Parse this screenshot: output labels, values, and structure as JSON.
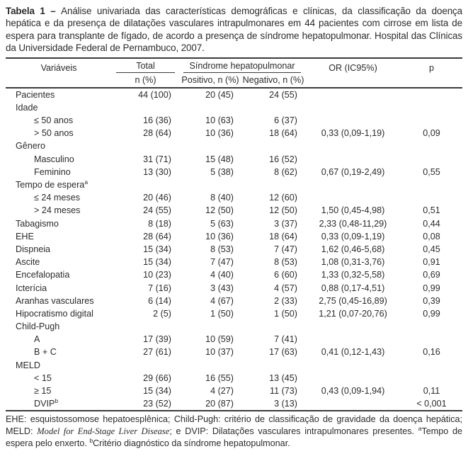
{
  "colors": {
    "ink": "#2b2b2b",
    "rule": "#3b3b3b"
  },
  "title": {
    "label": "Tabela 1 – ",
    "text": "Análise univariada das características demográficas e clínicas, da classificação da doença hepática e da presença de dilatações vasculares intrapulmonares em 44 pacientes com cirrose em lista de espera para transplante de fígado, de acordo a presença de síndrome hepatopulmonar. Hospital das Clínicas da Universidade Federal de Pernambuco, 2007."
  },
  "table": {
    "header": {
      "variaveis": "Variáveis",
      "total": "Total",
      "shp": "Síndrome hepatopulmonar",
      "or": "OR (IC95%)",
      "p": "p"
    },
    "subheader": {
      "total": "n (%)",
      "positivo": "Positivo, n (%)",
      "negativo": "Negativo, n (%)"
    },
    "rows": [
      {
        "label": "Pacientes",
        "indent": false,
        "sup": "",
        "total": "44 (100)",
        "positivo": "20 (45)",
        "negativo": "24 (55)",
        "or": "",
        "p": ""
      },
      {
        "label": "Idade",
        "indent": false,
        "sup": "",
        "total": "",
        "positivo": "",
        "negativo": "",
        "or": "",
        "p": ""
      },
      {
        "label": "≤ 50 anos",
        "indent": true,
        "sup": "",
        "total": "16 (36)",
        "positivo": "10 (63)",
        "negativo": "6 (37)",
        "or": "",
        "p": ""
      },
      {
        "label": "> 50 anos",
        "indent": true,
        "sup": "",
        "total": "28 (64)",
        "positivo": "10 (36)",
        "negativo": "18 (64)",
        "or": "0,33 (0,09-1,19)",
        "p": "0,09"
      },
      {
        "label": "Gênero",
        "indent": false,
        "sup": "",
        "total": "",
        "positivo": "",
        "negativo": "",
        "or": "",
        "p": ""
      },
      {
        "label": "Masculino",
        "indent": true,
        "sup": "",
        "total": "31 (71)",
        "positivo": "15 (48)",
        "negativo": "16 (52)",
        "or": "",
        "p": ""
      },
      {
        "label": "Feminino",
        "indent": true,
        "sup": "",
        "total": "13 (30)",
        "positivo": "5 (38)",
        "negativo": "8 (62)",
        "or": "0,67 (0,19-2,49)",
        "p": "0,55"
      },
      {
        "label": "Tempo de espera",
        "indent": false,
        "sup": "a",
        "total": "",
        "positivo": "",
        "negativo": "",
        "or": "",
        "p": ""
      },
      {
        "label": "≤ 24 meses",
        "indent": true,
        "sup": "",
        "total": "20 (46)",
        "positivo": "8 (40)",
        "negativo": "12 (60)",
        "or": "",
        "p": ""
      },
      {
        "label": "> 24 meses",
        "indent": true,
        "sup": "",
        "total": "24 (55)",
        "positivo": "12 (50)",
        "negativo": "12 (50)",
        "or": "1,50 (0,45-4,98)",
        "p": "0,51"
      },
      {
        "label": "Tabagismo",
        "indent": false,
        "sup": "",
        "total": "8 (18)",
        "positivo": "5 (63)",
        "negativo": "3 (37)",
        "or": "2,33 (0,48-11,29)",
        "p": "0,44"
      },
      {
        "label": "EHE",
        "indent": false,
        "sup": "",
        "total": "28 (64)",
        "positivo": "10 (36)",
        "negativo": "18 (64)",
        "or": "0,33 (0,09-1,19)",
        "p": "0,08"
      },
      {
        "label": "Dispneia",
        "indent": false,
        "sup": "",
        "total": "15 (34)",
        "positivo": "8 (53)",
        "negativo": "7 (47)",
        "or": "1,62 (0,46-5,68)",
        "p": "0,45"
      },
      {
        "label": "Ascite",
        "indent": false,
        "sup": "",
        "total": "15 (34)",
        "positivo": "7 (47)",
        "negativo": "8 (53)",
        "or": "1,08 (0,31-3,76)",
        "p": "0,91"
      },
      {
        "label": "Encefalopatia",
        "indent": false,
        "sup": "",
        "total": "10 (23)",
        "positivo": "4 (40)",
        "negativo": "6 (60)",
        "or": "1,33 (0,32-5,58)",
        "p": "0,69"
      },
      {
        "label": "Icterícia",
        "indent": false,
        "sup": "",
        "total": "7 (16)",
        "positivo": "3 (43)",
        "negativo": "4 (57)",
        "or": "0,88 (0,17-4,51)",
        "p": "0,99"
      },
      {
        "label": "Aranhas vasculares",
        "indent": false,
        "sup": "",
        "total": "6 (14)",
        "positivo": "4 (67)",
        "negativo": "2 (33)",
        "or": "2,75 (0,45-16,89)",
        "p": "0,39"
      },
      {
        "label": "Hipocratismo digital",
        "indent": false,
        "sup": "",
        "total": "2 (5)",
        "positivo": "1 (50)",
        "negativo": "1 (50)",
        "or": "1,21 (0,07-20,76)",
        "p": "0,99"
      },
      {
        "label": "Child-Pugh",
        "indent": false,
        "sup": "",
        "total": "",
        "positivo": "",
        "negativo": "",
        "or": "",
        "p": ""
      },
      {
        "label": "A",
        "indent": true,
        "sup": "",
        "total": "17 (39)",
        "positivo": "10 (59)",
        "negativo": "7 (41)",
        "or": "",
        "p": ""
      },
      {
        "label": "B + C",
        "indent": true,
        "sup": "",
        "total": "27 (61)",
        "positivo": "10 (37)",
        "negativo": "17 (63)",
        "or": "0,41 (0,12-1,43)",
        "p": "0,16"
      },
      {
        "label": "MELD",
        "indent": false,
        "sup": "",
        "total": "",
        "positivo": "",
        "negativo": "",
        "or": "",
        "p": ""
      },
      {
        "label": "< 15",
        "indent": true,
        "sup": "",
        "total": "29 (66)",
        "positivo": "16 (55)",
        "negativo": "13 (45)",
        "or": "",
        "p": ""
      },
      {
        "label": "≥ 15",
        "indent": true,
        "sup": "",
        "total": "15 (34)",
        "positivo": "4 (27)",
        "negativo": "11 (73)",
        "or": "0,43 (0,09-1,94)",
        "p": "0,11"
      },
      {
        "label": "DVIP",
        "indent": true,
        "sup": "b",
        "total": "23 (52)",
        "positivo": "20 (87)",
        "negativo": "3 (13)",
        "or": "",
        "p": "< 0,001"
      }
    ]
  },
  "footnote": {
    "part1": "EHE: esquistossomose hepatoesplênica; Child-Pugh: critério de classificação de gravidade da doença hepática; MELD: ",
    "italic": "Model for End-Stage Liver Disease",
    "part2": "; e DVIP: Dilatações vasculares intrapulmonares presentes. ",
    "sup_a": "a",
    "part3": "Tempo de espera pelo enxerto. ",
    "sup_b": "b",
    "part4": "Critério diagnóstico da síndrome hepatopulmonar."
  }
}
